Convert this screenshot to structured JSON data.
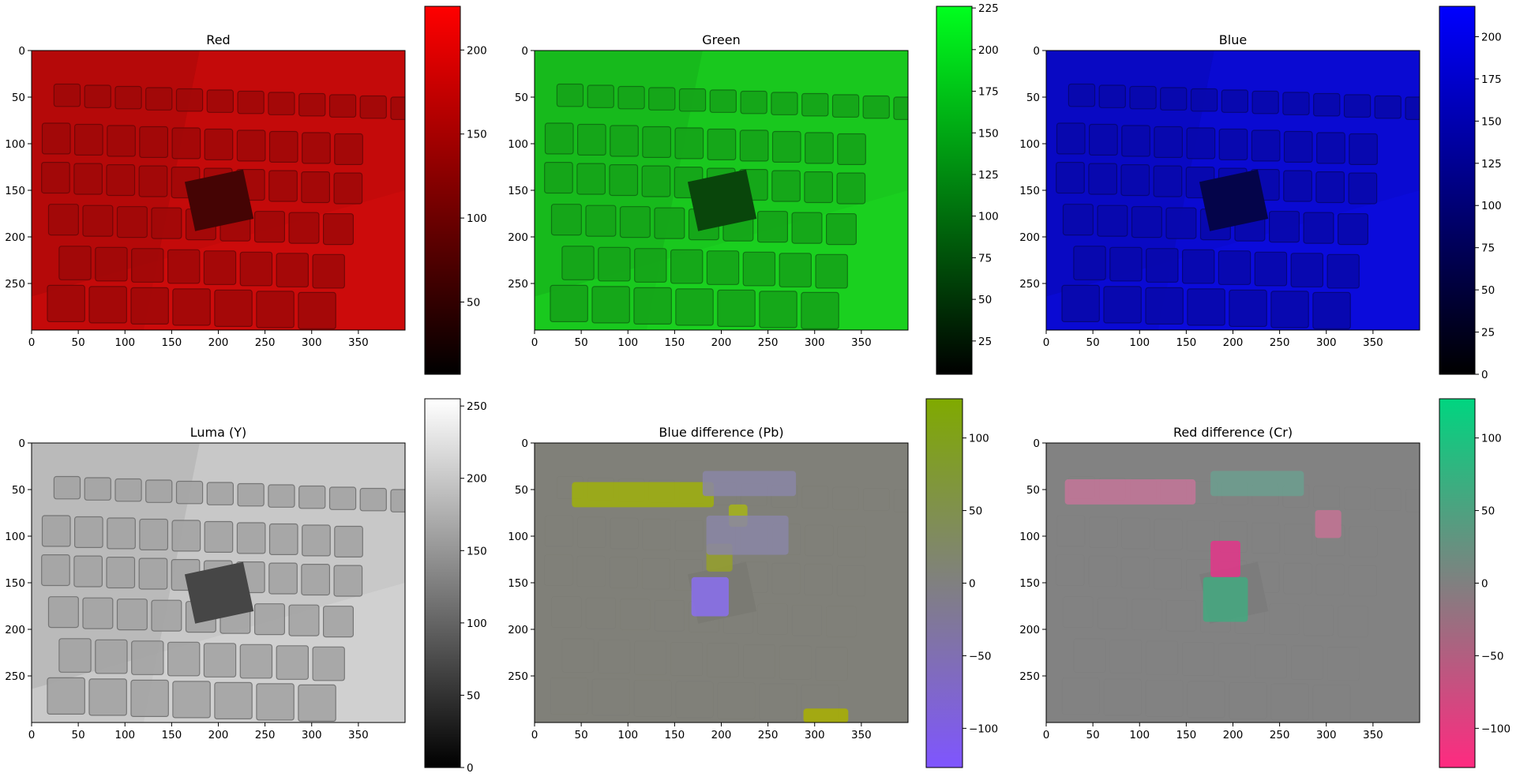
{
  "chart_data": [
    {
      "type": "heatmap",
      "title": "Red",
      "xticks": [
        0,
        50,
        100,
        150,
        200,
        250,
        300,
        350
      ],
      "yticks": [
        0,
        50,
        100,
        150,
        200,
        250
      ],
      "xlim": [
        0,
        400
      ],
      "ylim": [
        300,
        0
      ],
      "colormap": [
        "#000000",
        "#ff0000"
      ],
      "colorbar": {
        "range": [
          7,
          226
        ],
        "ticks": [
          50,
          100,
          150,
          200
        ]
      },
      "image_fill": "#c40a0a"
    },
    {
      "type": "heatmap",
      "title": "Green",
      "xticks": [
        0,
        50,
        100,
        150,
        200,
        250,
        300,
        350
      ],
      "yticks": [
        0,
        50,
        100,
        150,
        200,
        250
      ],
      "xlim": [
        0,
        400
      ],
      "ylim": [
        300,
        0
      ],
      "colormap": [
        "#000000",
        "#00ff1e"
      ],
      "colorbar": {
        "range": [
          5,
          226
        ],
        "ticks": [
          25,
          50,
          75,
          100,
          125,
          150,
          175,
          200,
          225
        ]
      },
      "image_fill": "#19c81e"
    },
    {
      "type": "heatmap",
      "title": "Blue",
      "xticks": [
        0,
        50,
        100,
        150,
        200,
        250,
        300,
        350
      ],
      "yticks": [
        0,
        50,
        100,
        150,
        200,
        250
      ],
      "xlim": [
        0,
        400
      ],
      "ylim": [
        300,
        0
      ],
      "colormap": [
        "#000000",
        "#0000ff"
      ],
      "colorbar": {
        "range": [
          0,
          218
        ],
        "ticks": [
          0,
          25,
          50,
          75,
          100,
          125,
          150,
          175,
          200
        ]
      },
      "image_fill": "#0a0ad2"
    },
    {
      "type": "heatmap",
      "title": "Luma (Y)",
      "xticks": [
        0,
        50,
        100,
        150,
        200,
        250,
        300,
        350
      ],
      "yticks": [
        0,
        50,
        100,
        150,
        200,
        250
      ],
      "xlim": [
        0,
        400
      ],
      "ylim": [
        300,
        0
      ],
      "colormap": [
        "#000000",
        "#ffffff"
      ],
      "colorbar": {
        "range": [
          0,
          255
        ],
        "ticks": [
          0,
          50,
          100,
          150,
          200,
          250
        ]
      },
      "image_fill": "#c8c8c8"
    },
    {
      "type": "heatmap",
      "title": "Blue difference (Pb)",
      "xticks": [
        0,
        50,
        100,
        150,
        200,
        250,
        300,
        350
      ],
      "yticks": [
        0,
        50,
        100,
        150,
        200,
        250
      ],
      "xlim": [
        0,
        400
      ],
      "ylim": [
        300,
        0
      ],
      "colormap": [
        "#7f55ff",
        "#808080",
        "#80aa00"
      ],
      "colorbar": {
        "range": [
          -127,
          127
        ],
        "ticks": [
          -100,
          -50,
          0,
          50,
          100
        ]
      },
      "image_fill": "#808079"
    },
    {
      "type": "heatmap",
      "title": "Red difference (Cr)",
      "xticks": [
        0,
        50,
        100,
        150,
        200,
        250,
        300,
        350
      ],
      "yticks": [
        0,
        50,
        100,
        150,
        200,
        250
      ],
      "xlim": [
        0,
        400
      ],
      "ylim": [
        300,
        0
      ],
      "colormap": [
        "#ff2a80",
        "#808080",
        "#00d580"
      ],
      "colorbar": {
        "range": [
          -127,
          127
        ],
        "ticks": [
          -100,
          -50,
          0,
          50,
          100
        ]
      },
      "image_fill": "#828282"
    }
  ]
}
